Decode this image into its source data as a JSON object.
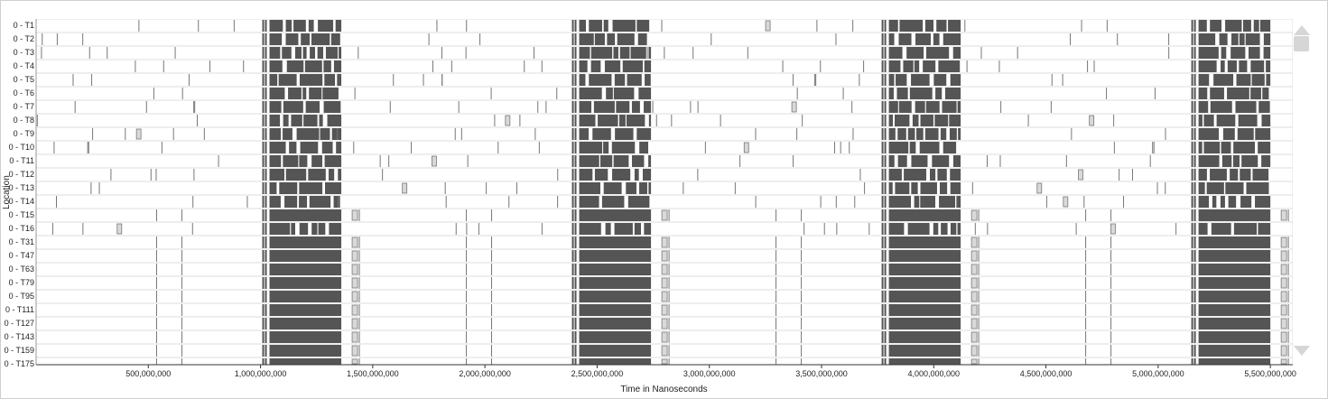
{
  "axes": {
    "y_label": "Location",
    "x_label": "Time in Nanoseconds",
    "x_range_ns": [
      0,
      5600000000
    ],
    "x_ticks": [
      {
        "value": 500000000,
        "label": "500,000,000"
      },
      {
        "value": 1000000000,
        "label": "1,000,000,000"
      },
      {
        "value": 1500000000,
        "label": "1,500,000,000"
      },
      {
        "value": 2000000000,
        "label": "2,000,000,000"
      },
      {
        "value": 2500000000,
        "label": "2,500,000,000"
      },
      {
        "value": 3000000000,
        "label": "3,000,000,000"
      },
      {
        "value": 3500000000,
        "label": "3,500,000,000"
      },
      {
        "value": 4000000000,
        "label": "4,000,000,000"
      },
      {
        "value": 4500000000,
        "label": "4,500,000,000"
      },
      {
        "value": 5000000000,
        "label": "5,000,000,000"
      },
      {
        "value": 5500000000,
        "label": "5,500,000,000"
      }
    ]
  },
  "rows": [
    {
      "label": "0 - T1",
      "group": "A"
    },
    {
      "label": "0 - T2",
      "group": "A"
    },
    {
      "label": "0 - T3",
      "group": "A"
    },
    {
      "label": "0 - T4",
      "group": "A"
    },
    {
      "label": "0 - T5",
      "group": "A"
    },
    {
      "label": "0 - T6",
      "group": "A"
    },
    {
      "label": "0 - T7",
      "group": "A"
    },
    {
      "label": "0 - T8",
      "group": "A"
    },
    {
      "label": "0 - T9",
      "group": "A"
    },
    {
      "label": "0 - T10",
      "group": "A"
    },
    {
      "label": "0 - T11",
      "group": "A"
    },
    {
      "label": "0 - T12",
      "group": "A"
    },
    {
      "label": "0 - T13",
      "group": "A"
    },
    {
      "label": "0 - T14",
      "group": "A"
    },
    {
      "label": "0 - T15",
      "group": "B"
    },
    {
      "label": "0 - T16",
      "group": "A"
    },
    {
      "label": "0 - T31",
      "group": "B"
    },
    {
      "label": "0 - T47",
      "group": "B"
    },
    {
      "label": "0 - T63",
      "group": "B"
    },
    {
      "label": "0 - T79",
      "group": "B"
    },
    {
      "label": "0 - T95",
      "group": "B"
    },
    {
      "label": "0 - T111",
      "group": "B"
    },
    {
      "label": "0 - T127",
      "group": "B"
    },
    {
      "label": "0 - T143",
      "group": "B"
    },
    {
      "label": "0 - T159",
      "group": "B"
    },
    {
      "label": "0 - T175",
      "group": "B"
    }
  ],
  "phases_ns": [
    {
      "start": 1040000000,
      "end": 1360000000
    },
    {
      "start": 2420000000,
      "end": 2740000000
    },
    {
      "start": 3800000000,
      "end": 4120000000
    },
    {
      "start": 5180000000,
      "end": 5500000000
    }
  ],
  "colors": {
    "busy_block": "#555555",
    "outline": "#777777",
    "idle_marker": "#d9d9d9",
    "row_border": "#dcdcdc",
    "scrollbar": "#d6d6d6"
  }
}
